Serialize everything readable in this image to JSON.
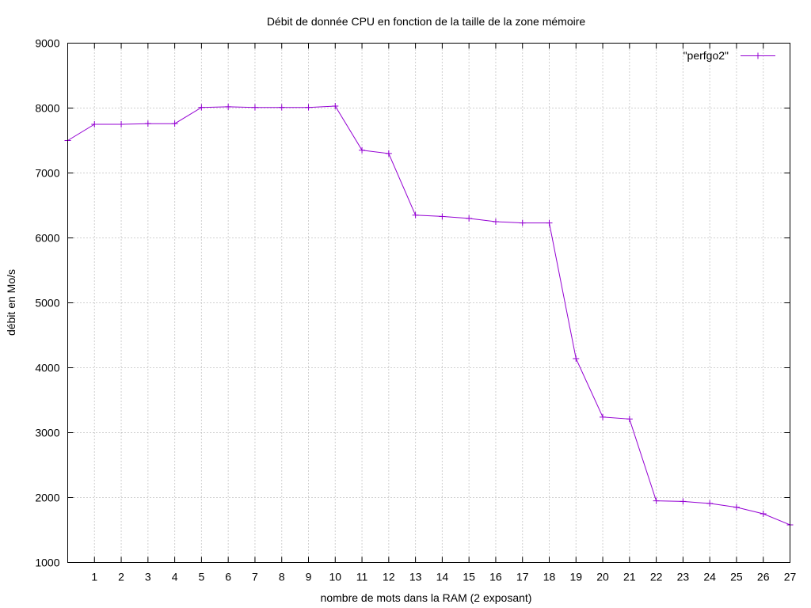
{
  "chart_data": {
    "type": "line",
    "title": "Débit de donnée CPU en fonction de la taille de la zone mémoire",
    "xlabel": "nombre de mots dans la RAM (2 exposant)",
    "ylabel": "débit en Mo/s",
    "xlim": [
      0,
      27
    ],
    "ylim": [
      1000,
      9000
    ],
    "xticks": [
      1,
      2,
      3,
      4,
      5,
      6,
      7,
      8,
      9,
      10,
      11,
      12,
      13,
      14,
      15,
      16,
      17,
      18,
      19,
      20,
      21,
      22,
      23,
      24,
      25,
      26,
      27
    ],
    "yticks": [
      1000,
      2000,
      3000,
      4000,
      5000,
      6000,
      7000,
      8000,
      9000
    ],
    "grid": true,
    "legend_position": "top-right",
    "series": [
      {
        "name": "\"perfgo2\"",
        "color": "#9400d3",
        "marker": "plus",
        "x": [
          0,
          1,
          2,
          3,
          4,
          5,
          6,
          7,
          8,
          9,
          10,
          11,
          12,
          13,
          14,
          15,
          16,
          17,
          18,
          19,
          20,
          21,
          22,
          23,
          24,
          25,
          26,
          27
        ],
        "y": [
          7500,
          7750,
          7750,
          7760,
          7760,
          8010,
          8020,
          8010,
          8010,
          8010,
          8030,
          7350,
          7300,
          6350,
          6330,
          6300,
          6250,
          6230,
          6230,
          4140,
          3240,
          3210,
          1950,
          1940,
          1910,
          1850,
          1750,
          1580
        ]
      }
    ]
  }
}
